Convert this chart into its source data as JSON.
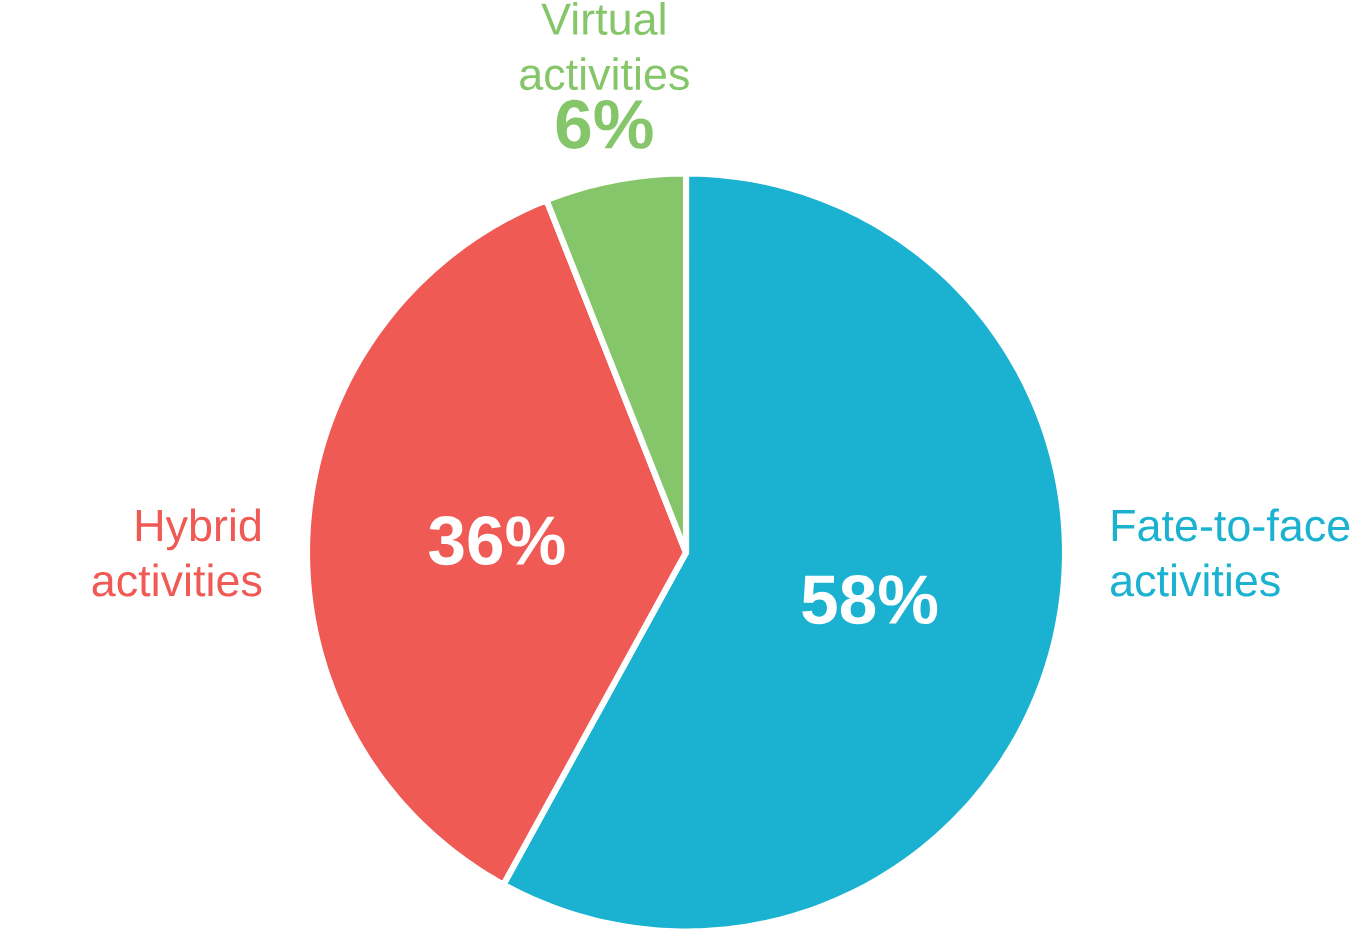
{
  "chart_data": {
    "type": "pie",
    "categories": [
      "Fate-to-face activities",
      "Hybrid activities",
      "Virtual activities"
    ],
    "values": [
      58,
      36,
      6
    ],
    "colors": [
      "#1ab2d0",
      "#f05a55",
      "#86c66a"
    ],
    "value_labels": [
      "58%",
      "36%",
      "6%"
    ]
  }
}
